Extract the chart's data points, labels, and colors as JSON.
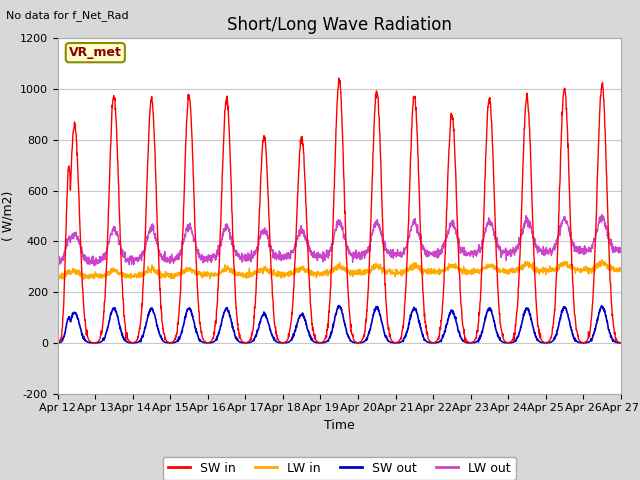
{
  "title": "Short/Long Wave Radiation",
  "subtitle": "No data for f_Net_Rad",
  "ylabel": "( W/m2)",
  "xlabel": "Time",
  "ylim": [
    -200,
    1200
  ],
  "yticks": [
    -200,
    0,
    200,
    400,
    600,
    800,
    1000,
    1200
  ],
  "xtick_labels": [
    "Apr 12",
    "Apr 13",
    "Apr 14",
    "Apr 15",
    "Apr 16",
    "Apr 17",
    "Apr 18",
    "Apr 19",
    "Apr 20",
    "Apr 21",
    "Apr 22",
    "Apr 23",
    "Apr 24",
    "Apr 25",
    "Apr 26",
    "Apr 27"
  ],
  "legend_labels": [
    "SW in",
    "LW in",
    "SW out",
    "LW out"
  ],
  "legend_colors": [
    "#ff0000",
    "#ffaa00",
    "#0000cc",
    "#cc44cc"
  ],
  "station_label": "VR_met",
  "fig_facecolor": "#d8d8d8",
  "plot_bg_color": "#ffffff",
  "grid_color": "#c8c8c8",
  "title_fontsize": 12,
  "label_fontsize": 9,
  "tick_fontsize": 8,
  "n_days": 15,
  "n_points_per_day": 144
}
